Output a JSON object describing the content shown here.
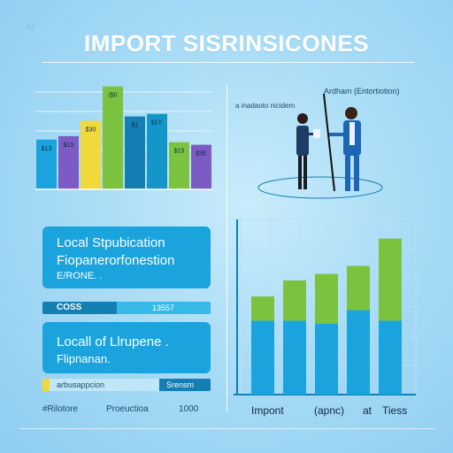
{
  "badge": "AI",
  "title": "IMPORT SISRINSICONES",
  "people": {
    "caption_top": "Ardham (Entortiotion)",
    "caption_left": "a inadaoto nicidem"
  },
  "left_chart": {
    "labels": [
      "$13",
      "$15",
      "$30",
      "($0",
      "$1",
      "$1Y.",
      "$15",
      "$3E"
    ]
  },
  "card1": {
    "line1": "Local Stpubication",
    "line2": "Fiopanerorfonestion",
    "line3": "E/RONE. ."
  },
  "strip1": {
    "label": "COSS",
    "value": "13557"
  },
  "card2": {
    "line1": "Locall of Llrupene .",
    "line2": "Flipnanan."
  },
  "strip2": {
    "label": "arbusappcion",
    "value": "Srensm"
  },
  "bottom_left": {
    "label1": "#Rilotore",
    "label2": "Proeuctioa",
    "label3": "1000"
  },
  "right_chart": {
    "x_labels": [
      "Impont",
      "(apnc)",
      "at",
      "Tiess"
    ]
  },
  "chart_data": [
    {
      "type": "bar",
      "categories": [
        "$13",
        "$15",
        "$30",
        "($0",
        "$1",
        "$1Y.",
        "$15",
        "$3E"
      ],
      "values": [
        58,
        62,
        80,
        120,
        85,
        88,
        55,
        52
      ],
      "colors": [
        "#1aa3dc",
        "#7c5bc4",
        "#f2d93b",
        "#7bc33f",
        "#137fb3",
        "#1596c9",
        "#7bc33f",
        "#7c5bc4"
      ],
      "grid": true
    },
    {
      "type": "bar",
      "stacked": true,
      "categories": [
        "",
        "",
        "",
        "",
        ""
      ],
      "series": [
        {
          "values": [
            92,
            92,
            88,
            105,
            92
          ],
          "color": "#1aa3dc"
        },
        {
          "values": [
            30,
            50,
            62,
            55,
            102
          ],
          "color": "#7bc33f"
        }
      ],
      "ylim": [
        0,
        220
      ],
      "grid": true
    }
  ]
}
